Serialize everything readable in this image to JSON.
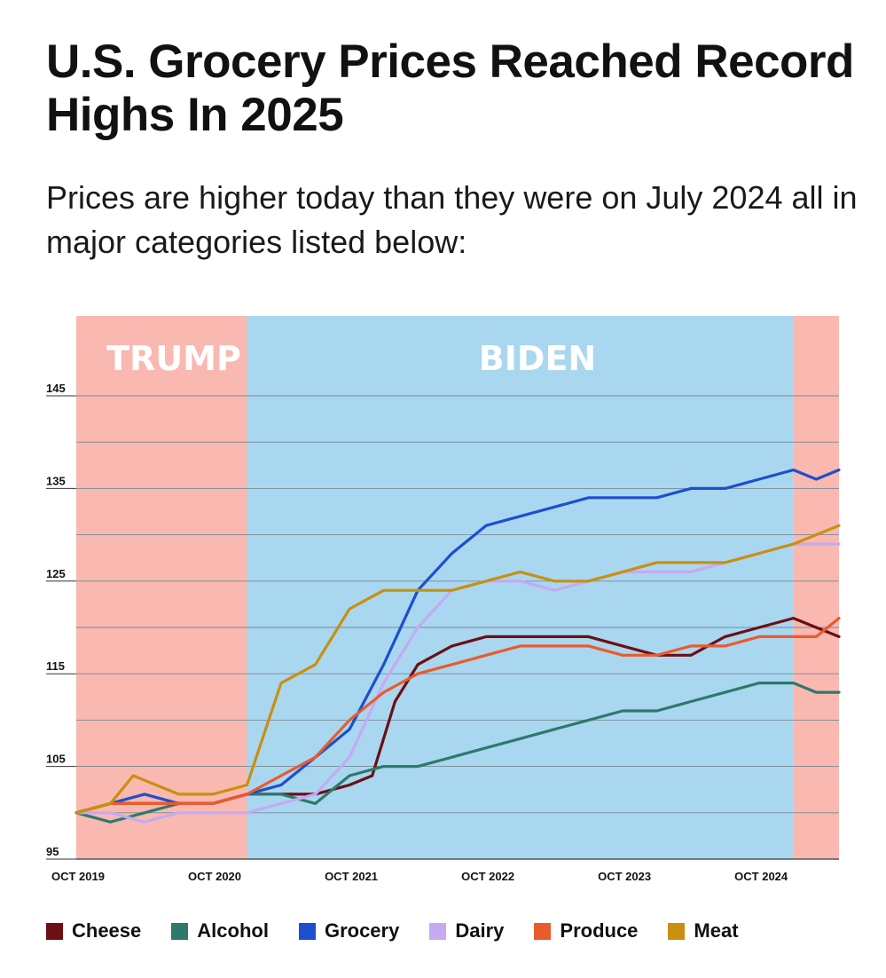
{
  "title": "U.S. Grocery Prices Reached Record Highs In 2025",
  "subtitle": "Prices are higher today than they were on July 2024 all in major categories listed below:",
  "chart_data": {
    "type": "line",
    "xlabel": "",
    "ylabel": "",
    "ylim": [
      95,
      145
    ],
    "y_ticks": [
      "145",
      "135",
      "125",
      "115",
      "105",
      "95"
    ],
    "x_ticks": [
      "OCT 2019",
      "OCT 2020",
      "OCT 2021",
      "OCT 2022",
      "OCT 2023",
      "OCT 2024"
    ],
    "x_range": [
      "2019-10",
      "2025-05"
    ],
    "grid": true,
    "legend_placement": "bottom",
    "eras": [
      {
        "name": "TRUMP",
        "start": "2019-10",
        "end": "2021-01",
        "color": "#f9b8b0"
      },
      {
        "name": "BIDEN",
        "start": "2021-01",
        "end": "2025-01",
        "color": "#a9d7f0"
      },
      {
        "name": "",
        "start": "2025-01",
        "end": "2025-05",
        "color": "#f9b8b0"
      }
    ],
    "series": [
      {
        "name": "Cheese",
        "color": "#6b0f14",
        "points": [
          [
            "2019-10",
            100
          ],
          [
            "2020-01",
            101
          ],
          [
            "2020-04",
            101
          ],
          [
            "2020-07",
            101
          ],
          [
            "2020-10",
            101
          ],
          [
            "2021-01",
            102
          ],
          [
            "2021-04",
            102
          ],
          [
            "2021-07",
            102
          ],
          [
            "2021-10",
            103
          ],
          [
            "2021-12",
            104
          ],
          [
            "2022-02",
            112
          ],
          [
            "2022-04",
            116
          ],
          [
            "2022-07",
            118
          ],
          [
            "2022-10",
            119
          ],
          [
            "2023-01",
            119
          ],
          [
            "2023-04",
            119
          ],
          [
            "2023-07",
            119
          ],
          [
            "2023-10",
            118
          ],
          [
            "2024-01",
            117
          ],
          [
            "2024-04",
            117
          ],
          [
            "2024-07",
            119
          ],
          [
            "2024-10",
            120
          ],
          [
            "2025-01",
            121
          ],
          [
            "2025-03",
            120
          ],
          [
            "2025-05",
            119
          ]
        ]
      },
      {
        "name": "Alcohol",
        "color": "#2d7a6a",
        "points": [
          [
            "2019-10",
            100
          ],
          [
            "2020-01",
            99
          ],
          [
            "2020-04",
            100
          ],
          [
            "2020-07",
            101
          ],
          [
            "2020-10",
            101
          ],
          [
            "2021-01",
            102
          ],
          [
            "2021-04",
            102
          ],
          [
            "2021-07",
            101
          ],
          [
            "2021-10",
            104
          ],
          [
            "2022-01",
            105
          ],
          [
            "2022-04",
            105
          ],
          [
            "2022-07",
            106
          ],
          [
            "2022-10",
            107
          ],
          [
            "2023-01",
            108
          ],
          [
            "2023-04",
            109
          ],
          [
            "2023-07",
            110
          ],
          [
            "2023-10",
            111
          ],
          [
            "2024-01",
            111
          ],
          [
            "2024-04",
            112
          ],
          [
            "2024-07",
            113
          ],
          [
            "2024-10",
            114
          ],
          [
            "2025-01",
            114
          ],
          [
            "2025-03",
            113
          ],
          [
            "2025-05",
            113
          ]
        ]
      },
      {
        "name": "Grocery",
        "color": "#1d4fcf",
        "points": [
          [
            "2019-10",
            100
          ],
          [
            "2020-01",
            101
          ],
          [
            "2020-04",
            102
          ],
          [
            "2020-07",
            101
          ],
          [
            "2020-10",
            101
          ],
          [
            "2021-01",
            102
          ],
          [
            "2021-04",
            103
          ],
          [
            "2021-07",
            106
          ],
          [
            "2021-10",
            109
          ],
          [
            "2022-01",
            116
          ],
          [
            "2022-04",
            124
          ],
          [
            "2022-07",
            128
          ],
          [
            "2022-10",
            131
          ],
          [
            "2023-01",
            132
          ],
          [
            "2023-04",
            133
          ],
          [
            "2023-07",
            134
          ],
          [
            "2023-10",
            134
          ],
          [
            "2024-01",
            134
          ],
          [
            "2024-04",
            135
          ],
          [
            "2024-07",
            135
          ],
          [
            "2024-10",
            136
          ],
          [
            "2025-01",
            137
          ],
          [
            "2025-03",
            136
          ],
          [
            "2025-05",
            137
          ]
        ]
      },
      {
        "name": "Dairy",
        "color": "#c5aaf2",
        "points": [
          [
            "2019-10",
            100
          ],
          [
            "2020-01",
            100
          ],
          [
            "2020-04",
            99
          ],
          [
            "2020-07",
            100
          ],
          [
            "2020-10",
            100
          ],
          [
            "2021-01",
            100
          ],
          [
            "2021-04",
            101
          ],
          [
            "2021-07",
            102
          ],
          [
            "2021-10",
            106
          ],
          [
            "2022-01",
            114
          ],
          [
            "2022-04",
            120
          ],
          [
            "2022-07",
            124
          ],
          [
            "2022-10",
            125
          ],
          [
            "2023-01",
            125
          ],
          [
            "2023-04",
            124
          ],
          [
            "2023-07",
            125
          ],
          [
            "2023-10",
            126
          ],
          [
            "2024-01",
            126
          ],
          [
            "2024-04",
            126
          ],
          [
            "2024-07",
            127
          ],
          [
            "2024-10",
            128
          ],
          [
            "2025-01",
            129
          ],
          [
            "2025-03",
            129
          ],
          [
            "2025-05",
            129
          ]
        ]
      },
      {
        "name": "Produce",
        "color": "#ea5b2c",
        "points": [
          [
            "2019-10",
            100
          ],
          [
            "2020-01",
            101
          ],
          [
            "2020-04",
            101
          ],
          [
            "2020-07",
            101
          ],
          [
            "2020-10",
            101
          ],
          [
            "2021-01",
            102
          ],
          [
            "2021-04",
            104
          ],
          [
            "2021-07",
            106
          ],
          [
            "2021-10",
            110
          ],
          [
            "2022-01",
            113
          ],
          [
            "2022-04",
            115
          ],
          [
            "2022-07",
            116
          ],
          [
            "2022-10",
            117
          ],
          [
            "2023-01",
            118
          ],
          [
            "2023-04",
            118
          ],
          [
            "2023-07",
            118
          ],
          [
            "2023-10",
            117
          ],
          [
            "2024-01",
            117
          ],
          [
            "2024-04",
            118
          ],
          [
            "2024-07",
            118
          ],
          [
            "2024-10",
            119
          ],
          [
            "2025-01",
            119
          ],
          [
            "2025-03",
            119
          ],
          [
            "2025-05",
            121
          ]
        ]
      },
      {
        "name": "Meat",
        "color": "#c9900f",
        "points": [
          [
            "2019-10",
            100
          ],
          [
            "2020-01",
            101
          ],
          [
            "2020-03",
            104
          ],
          [
            "2020-05",
            103
          ],
          [
            "2020-07",
            102
          ],
          [
            "2020-10",
            102
          ],
          [
            "2021-01",
            103
          ],
          [
            "2021-04",
            114
          ],
          [
            "2021-07",
            116
          ],
          [
            "2021-10",
            122
          ],
          [
            "2022-01",
            124
          ],
          [
            "2022-04",
            124
          ],
          [
            "2022-07",
            124
          ],
          [
            "2022-10",
            125
          ],
          [
            "2023-01",
            126
          ],
          [
            "2023-04",
            125
          ],
          [
            "2023-07",
            125
          ],
          [
            "2023-10",
            126
          ],
          [
            "2024-01",
            127
          ],
          [
            "2024-04",
            127
          ],
          [
            "2024-07",
            127
          ],
          [
            "2024-10",
            128
          ],
          [
            "2025-01",
            129
          ],
          [
            "2025-03",
            130
          ],
          [
            "2025-05",
            131
          ]
        ]
      }
    ]
  }
}
